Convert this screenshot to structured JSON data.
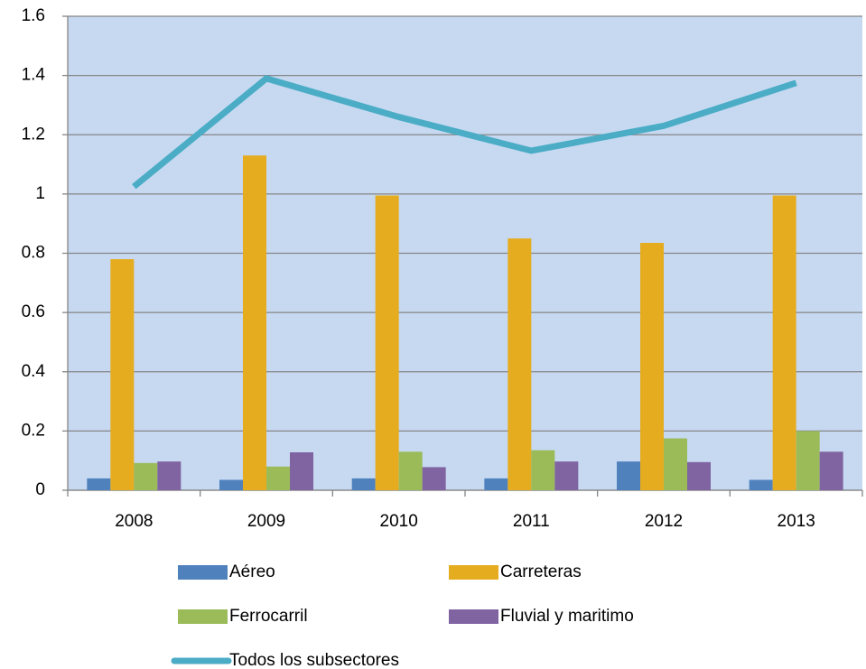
{
  "chart_data": {
    "type": "bar",
    "categories": [
      "2008",
      "2009",
      "2010",
      "2011",
      "2012",
      "2013"
    ],
    "series": [
      {
        "name": "Aéreo",
        "color": "#4f81bd",
        "values": [
          0.04,
          0.035,
          0.04,
          0.04,
          0.097,
          0.035
        ]
      },
      {
        "name": "Carreteras",
        "color": "#e6ac20",
        "values": [
          0.78,
          1.13,
          0.995,
          0.85,
          0.835,
          0.995
        ]
      },
      {
        "name": "Ferrocarril",
        "color": "#9bbb59",
        "values": [
          0.092,
          0.08,
          0.13,
          0.135,
          0.175,
          0.2
        ]
      },
      {
        "name": "Fluvial y maritimo",
        "color": "#8064a2",
        "values": [
          0.097,
          0.128,
          0.078,
          0.097,
          0.095,
          0.13
        ]
      },
      {
        "name": "Todos los subsectores",
        "color": "#4bacc6",
        "type": "line",
        "values": [
          1.025,
          1.39,
          1.26,
          1.146,
          1.23,
          1.375
        ]
      }
    ],
    "ylim": [
      0,
      1.6
    ],
    "yticks": [
      0,
      0.2,
      0.4,
      0.6,
      0.8,
      1,
      1.2,
      1.4,
      1.6
    ],
    "grid": true,
    "legend": "bottom"
  }
}
